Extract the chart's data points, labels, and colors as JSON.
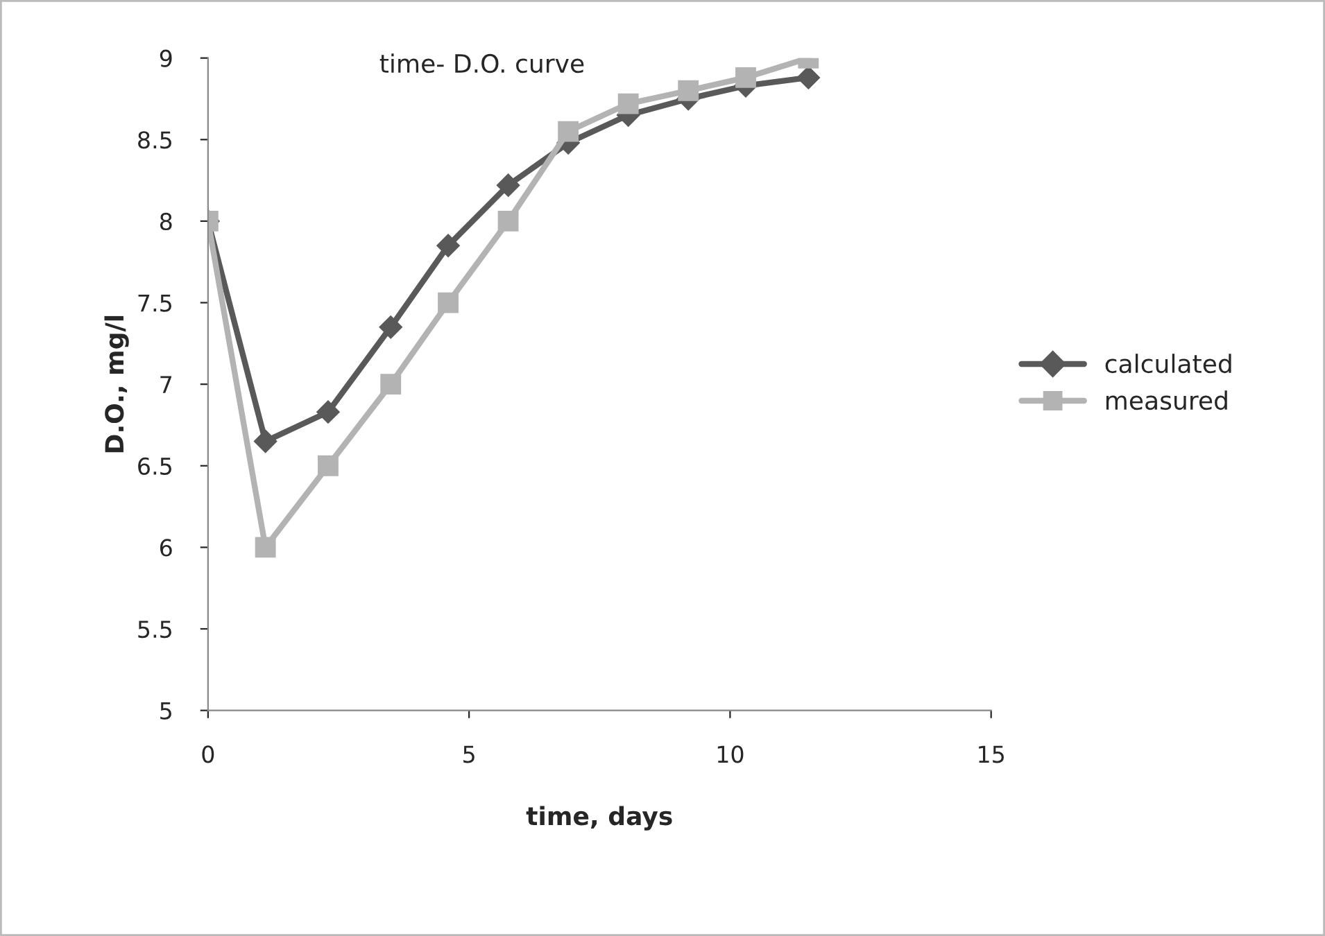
{
  "chart_data": {
    "type": "line",
    "title": "time- D.O. curve",
    "xlabel": "time, days",
    "ylabel": "D.O., mg/l",
    "xlim": [
      0,
      15
    ],
    "xticks": [
      0,
      5,
      10,
      15
    ],
    "ylim": [
      5,
      9
    ],
    "yticks": [
      5,
      5.5,
      6,
      6.5,
      7,
      7.5,
      8,
      8.5,
      9
    ],
    "grid": false,
    "legend": "right",
    "series": [
      {
        "name": "calculated",
        "color": "#595959",
        "marker": "diamond",
        "x": [
          0,
          1.1,
          2.3,
          3.5,
          4.6,
          5.75,
          6.9,
          8.05,
          9.2,
          10.3,
          11.5
        ],
        "values": [
          8.0,
          6.65,
          6.83,
          7.35,
          7.85,
          8.22,
          8.48,
          8.65,
          8.75,
          8.83,
          8.88
        ]
      },
      {
        "name": "measured",
        "color": "#b3b3b3",
        "marker": "square",
        "x": [
          0,
          1.1,
          2.3,
          3.5,
          4.6,
          5.75,
          6.9,
          8.05,
          9.2,
          10.3,
          11.5
        ],
        "values": [
          8.0,
          6.0,
          6.5,
          7.0,
          7.5,
          8.0,
          8.55,
          8.72,
          8.8,
          8.88,
          9.0
        ]
      }
    ]
  }
}
